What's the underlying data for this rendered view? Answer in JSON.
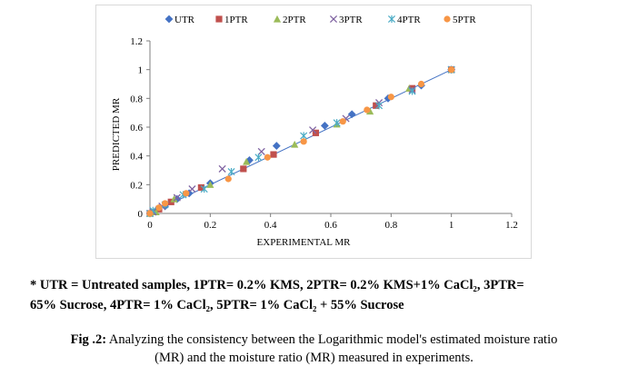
{
  "chart_data": {
    "type": "scatter",
    "xlabel": "EXPERIMENTAL MR",
    "ylabel": "PREDICTED MR",
    "xlim": [
      0,
      1.2
    ],
    "ylim": [
      0,
      1.2
    ],
    "xticks": [
      "0",
      "0.2",
      "0.4",
      "0.6",
      "0.8",
      "1",
      "1.2"
    ],
    "yticks": [
      "0",
      "0.2",
      "0.4",
      "0.6",
      "0.8",
      "1",
      "1.2"
    ],
    "legend_position": "top",
    "grid": false,
    "fit_line": [
      [
        0,
        0
      ],
      [
        1,
        1
      ]
    ],
    "series": [
      {
        "name": "UTR",
        "color": "#4472c4",
        "marker": "diamond",
        "points": [
          [
            0,
            0
          ],
          [
            0.02,
            0.02
          ],
          [
            0.05,
            0.05
          ],
          [
            0.09,
            0.1
          ],
          [
            0.13,
            0.14
          ],
          [
            0.2,
            0.21
          ],
          [
            0.33,
            0.37
          ],
          [
            0.42,
            0.47
          ],
          [
            0.58,
            0.61
          ],
          [
            0.67,
            0.69
          ],
          [
            0.79,
            0.8
          ],
          [
            0.9,
            0.89
          ],
          [
            1,
            1
          ]
        ]
      },
      {
        "name": "1PTR",
        "color": "#c0504d",
        "marker": "square",
        "points": [
          [
            0,
            0
          ],
          [
            0.03,
            0.03
          ],
          [
            0.07,
            0.08
          ],
          [
            0.17,
            0.18
          ],
          [
            0.31,
            0.31
          ],
          [
            0.41,
            0.41
          ],
          [
            0.55,
            0.56
          ],
          [
            0.75,
            0.75
          ],
          [
            0.87,
            0.87
          ],
          [
            1,
            1
          ]
        ]
      },
      {
        "name": "2PTR",
        "color": "#9bbb59",
        "marker": "triangle",
        "points": [
          [
            0,
            0
          ],
          [
            0.02,
            0.01
          ],
          [
            0.08,
            0.1
          ],
          [
            0.2,
            0.2
          ],
          [
            0.32,
            0.36
          ],
          [
            0.48,
            0.48
          ],
          [
            0.62,
            0.62
          ],
          [
            0.73,
            0.71
          ],
          [
            0.86,
            0.87
          ],
          [
            1,
            1
          ]
        ]
      },
      {
        "name": "3PTR",
        "color": "#8064a2",
        "marker": "x",
        "points": [
          [
            0,
            0
          ],
          [
            0.01,
            0.01
          ],
          [
            0.04,
            0.05
          ],
          [
            0.09,
            0.11
          ],
          [
            0.14,
            0.17
          ],
          [
            0.24,
            0.31
          ],
          [
            0.37,
            0.43
          ],
          [
            0.54,
            0.58
          ],
          [
            0.65,
            0.66
          ],
          [
            0.76,
            0.77
          ],
          [
            0.87,
            0.86
          ],
          [
            1,
            1
          ]
        ]
      },
      {
        "name": "4PTR",
        "color": "#4bacc6",
        "marker": "star",
        "points": [
          [
            0,
            0
          ],
          [
            0.01,
            0.02
          ],
          [
            0.05,
            0.06
          ],
          [
            0.11,
            0.13
          ],
          [
            0.18,
            0.17
          ],
          [
            0.27,
            0.29
          ],
          [
            0.36,
            0.39
          ],
          [
            0.51,
            0.54
          ],
          [
            0.62,
            0.63
          ],
          [
            0.76,
            0.75
          ],
          [
            0.87,
            0.85
          ],
          [
            1,
            1
          ]
        ]
      },
      {
        "name": "5PTR",
        "color": "#f79646",
        "marker": "circle",
        "points": [
          [
            0,
            0
          ],
          [
            0.03,
            0.04
          ],
          [
            0.05,
            0.07
          ],
          [
            0.12,
            0.14
          ],
          [
            0.26,
            0.24
          ],
          [
            0.39,
            0.39
          ],
          [
            0.51,
            0.5
          ],
          [
            0.64,
            0.64
          ],
          [
            0.72,
            0.72
          ],
          [
            0.8,
            0.81
          ],
          [
            0.9,
            0.9
          ],
          [
            1,
            1
          ]
        ]
      }
    ]
  },
  "footnote": {
    "line1": "* UTR = Untreated samples, 1PTR= 0.2% KMS, 2PTR= 0.2% KMS+1% CaCl₂, 3PTR=",
    "line2": "65% Sucrose, 4PTR= 1% CaCl₂, 5PTR= 1% CaCl₂ + 55% Sucrose"
  },
  "caption": {
    "label": "Fig .2:",
    "line1": " Analyzing the consistency between the Logarithmic model's estimated moisture ratio",
    "line2": "(MR) and the moisture ratio (MR) measured in experiments."
  }
}
